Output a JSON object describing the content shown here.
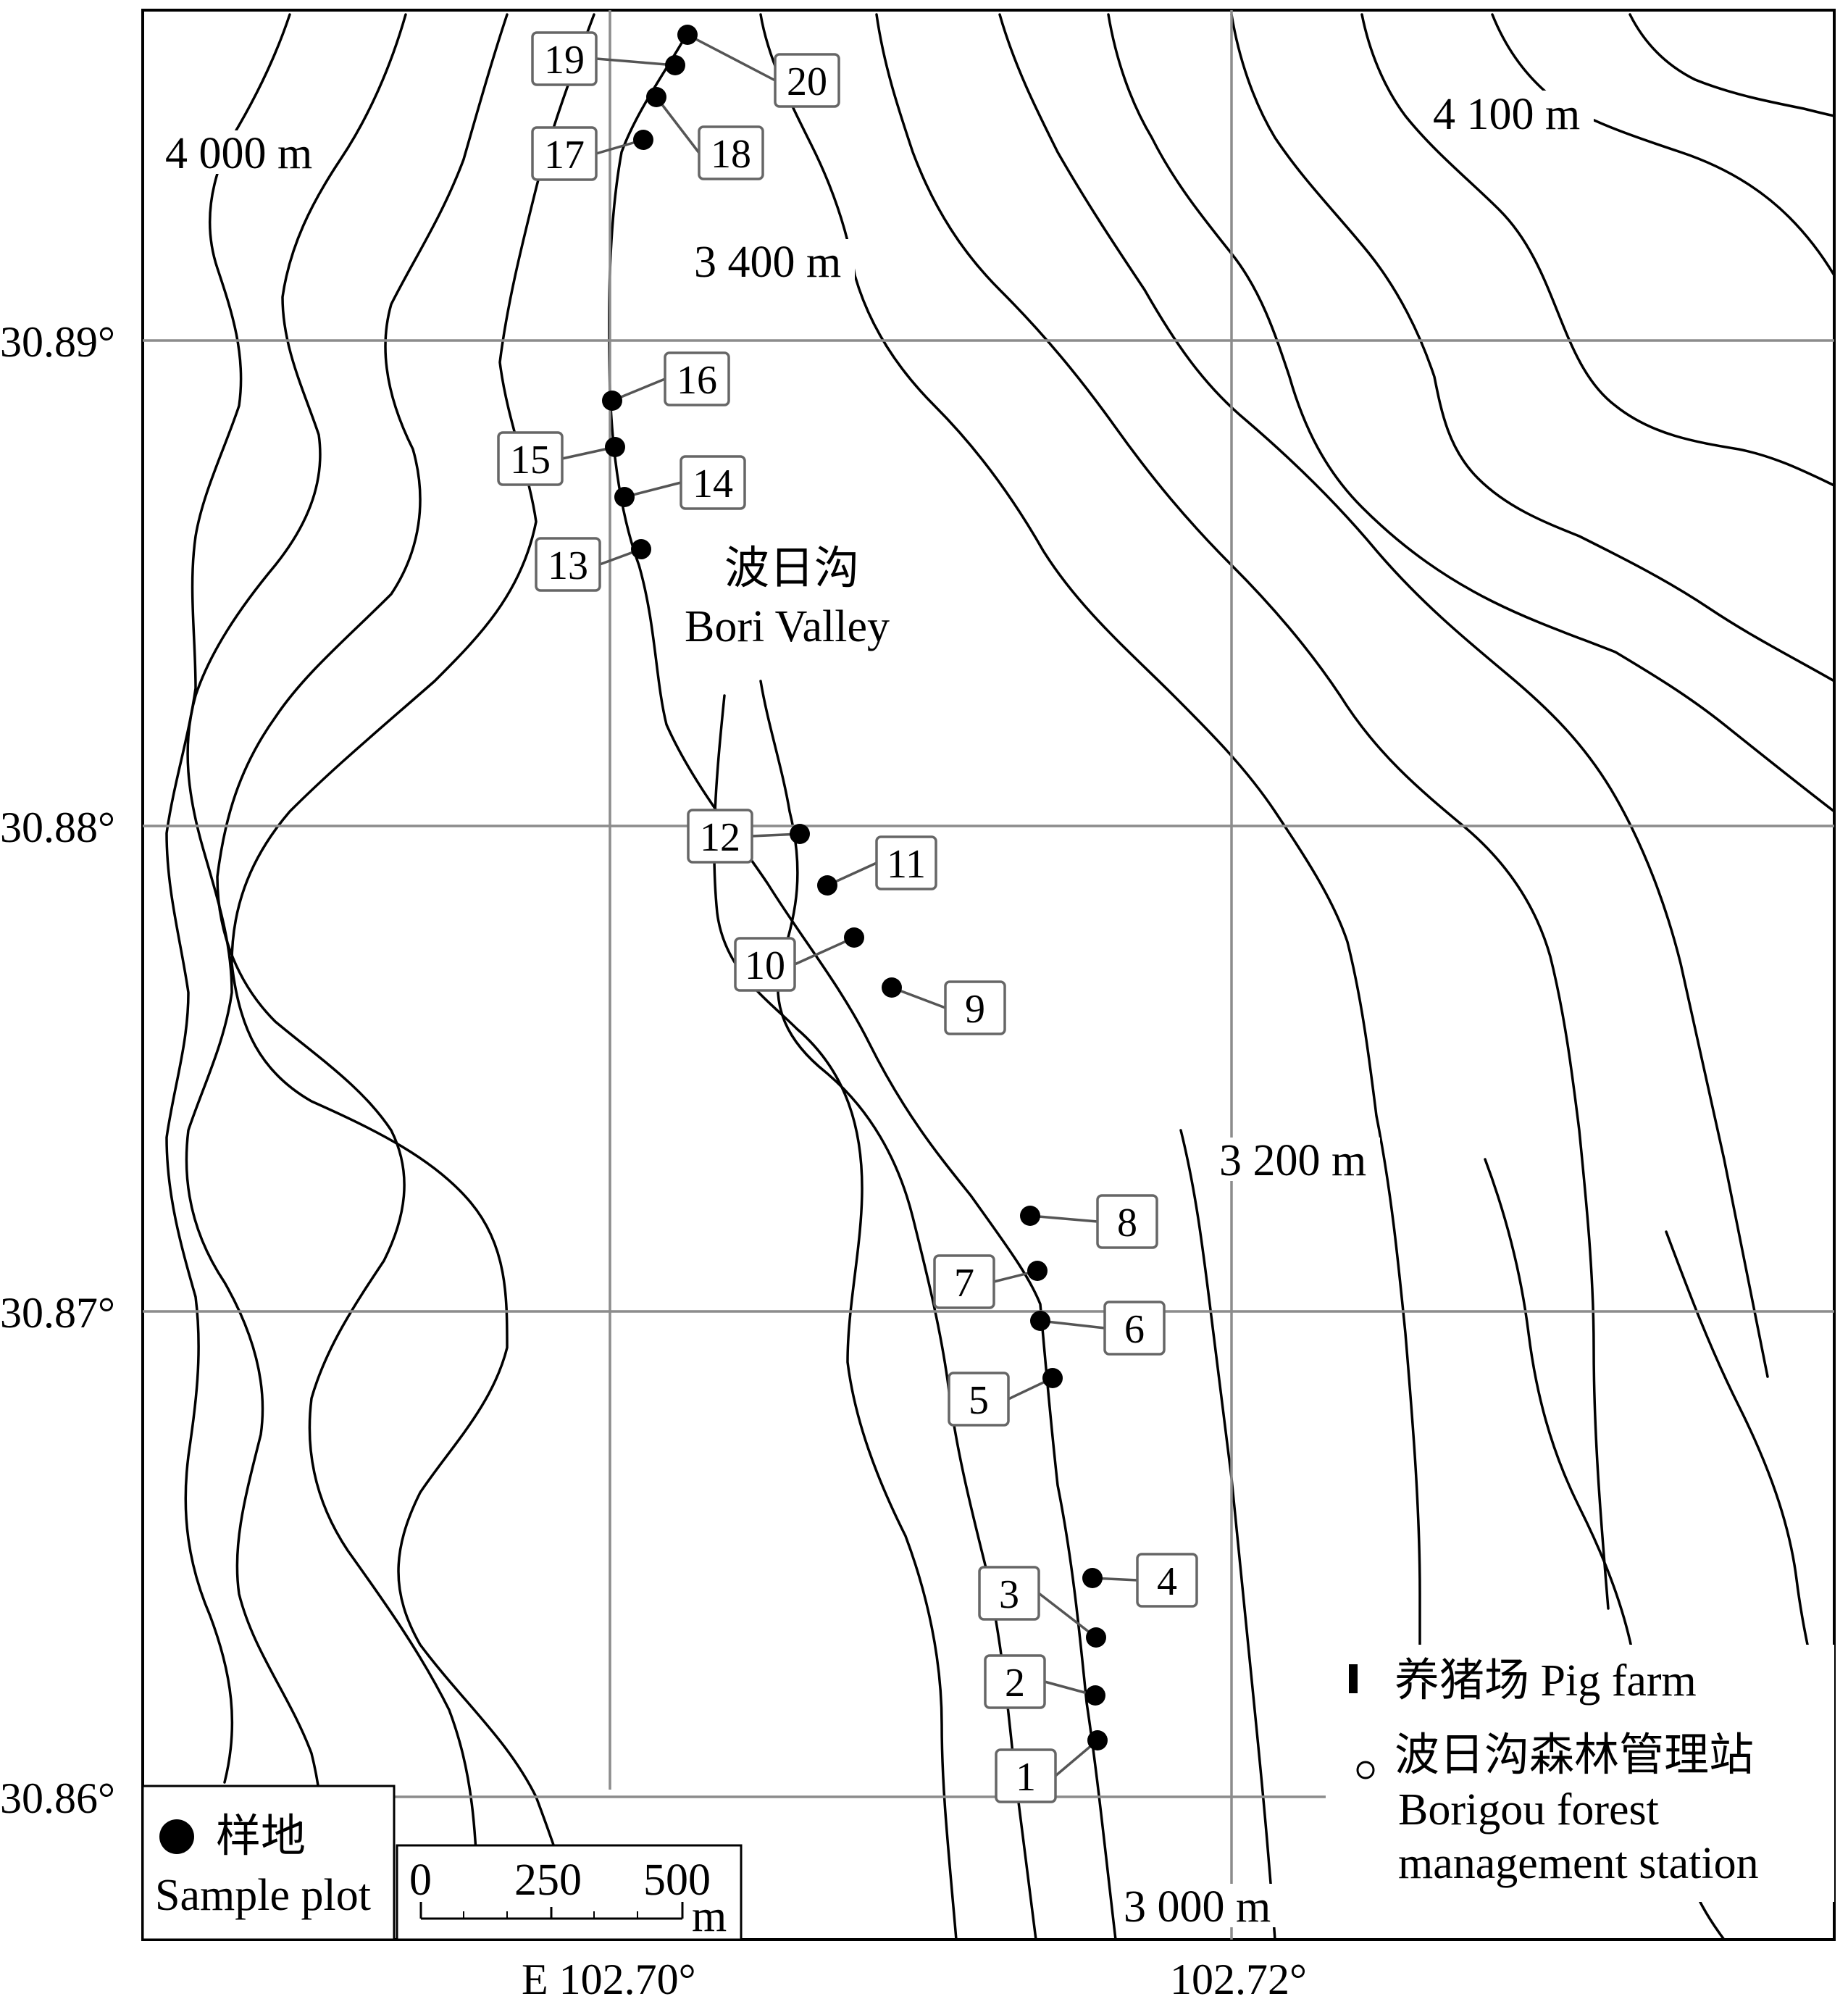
{
  "axes": {
    "lat_ticks": [
      "30.89°",
      "30.88°",
      "30.87°",
      "30.86°"
    ],
    "lon_ticks": [
      "E 102.70°",
      "102.72°"
    ]
  },
  "elevation_labels": [
    "4 000 m",
    "4 100 m",
    "3 400 m",
    "3 200 m",
    "3 000 m"
  ],
  "valley": {
    "name_cn": "波日沟",
    "name_en": "Bori Valley"
  },
  "sample_plots": [
    "1",
    "2",
    "3",
    "4",
    "5",
    "6",
    "7",
    "8",
    "9",
    "10",
    "11",
    "12",
    "13",
    "14",
    "15",
    "16",
    "17",
    "18",
    "19",
    "20"
  ],
  "legend_left": {
    "cn": "样地",
    "en": "Sample plot"
  },
  "scale_bar": {
    "ticks": [
      "0",
      "250",
      "500"
    ],
    "unit": "m"
  },
  "legend_right": {
    "pig_farm": "养猪场 Pig farm",
    "station_cn": "波日沟森林管理站",
    "station_en_line1": "Borigou forest",
    "station_en_line2": "management station"
  },
  "colors": {
    "line": "#000000",
    "grid": "#8c8c8c",
    "box_border": "#666666"
  }
}
